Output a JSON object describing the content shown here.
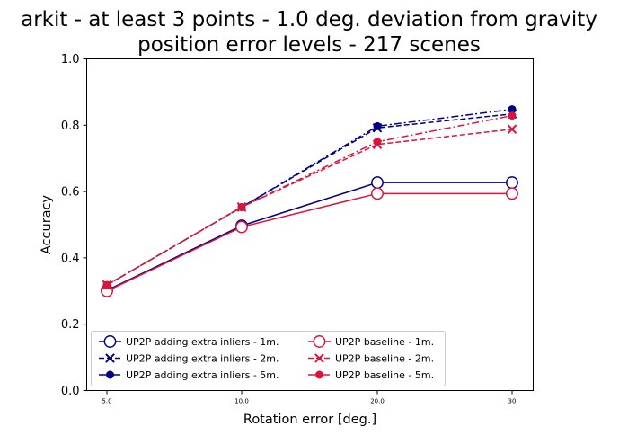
{
  "chart_data": {
    "type": "line",
    "title_lines": [
      "arkit - at least 3 points - 1.0 deg. deviation from gravity",
      "position error levels - 217 scenes"
    ],
    "xlabel": "Rotation error [deg.]",
    "ylabel": "Accuracy",
    "categories": [
      "5.0",
      "10.0",
      "20.0",
      "30"
    ],
    "ylim": [
      0.0,
      1.0
    ],
    "yticks": [
      "0.0",
      "0.2",
      "0.4",
      "0.6",
      "0.8",
      "1.0"
    ],
    "grid": false,
    "legend": {
      "placement": "lower-center",
      "columns": 2
    },
    "series": [
      {
        "name": "UP2P adding extra inliers - 1m.",
        "color": "#000080",
        "line": "solid",
        "marker": "open-circle",
        "values": [
          0.302,
          0.497,
          0.627,
          0.627
        ]
      },
      {
        "name": "UP2P adding extra inliers - 2m.",
        "color": "#000080",
        "line": "dashed",
        "marker": "x",
        "values": [
          0.318,
          0.553,
          0.792,
          0.834
        ]
      },
      {
        "name": "UP2P adding extra inliers - 5m.",
        "color": "#000080",
        "line": "dashdot",
        "marker": "filled-circle",
        "values": [
          0.318,
          0.553,
          0.797,
          0.848
        ]
      },
      {
        "name": "UP2P baseline - 1m.",
        "color": "#dc143c",
        "line": "solid",
        "marker": "open-circle",
        "values": [
          0.3,
          0.493,
          0.594,
          0.594
        ]
      },
      {
        "name": "UP2P baseline - 2m.",
        "color": "#dc143c",
        "line": "dashed",
        "marker": "x",
        "values": [
          0.318,
          0.553,
          0.742,
          0.788
        ]
      },
      {
        "name": "UP2P baseline - 5m.",
        "color": "#dc143c",
        "line": "dashdot",
        "marker": "filled-circle",
        "values": [
          0.318,
          0.553,
          0.75,
          0.829
        ]
      }
    ]
  }
}
